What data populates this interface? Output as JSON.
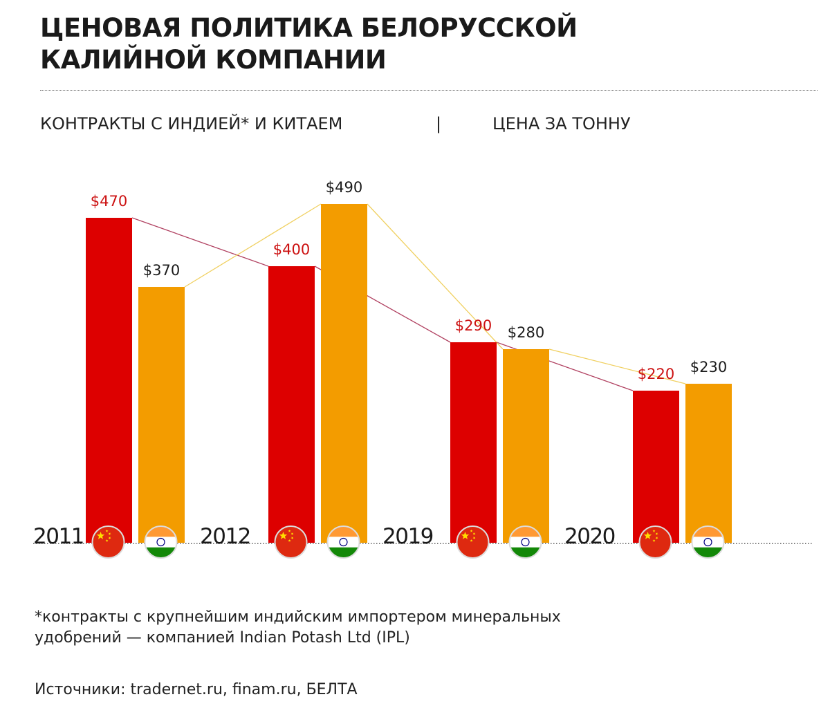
{
  "header": {
    "title_line1": "ЦЕНОВАЯ ПОЛИТИКА БЕЛОРУССКОЙ",
    "title_line2": "КАЛИЙНОЙ КОМПАНИИ",
    "subtitle_left": "КОНТРАКТЫ С ИНДИЕЙ* И КИТАЕМ",
    "subtitle_sep": "|",
    "subtitle_right": "ЦЕНА ЗА ТОННУ"
  },
  "chart_data": {
    "type": "bar",
    "categories": [
      "2011",
      "2012",
      "2019",
      "2020"
    ],
    "series": [
      {
        "key": "china",
        "flag_icon": "china-flag-icon",
        "color": "#dd0000",
        "label_color": "#cc1111",
        "values": [
          470,
          400,
          290,
          220
        ],
        "labels": [
          "$470",
          "$400",
          "$290",
          "$220"
        ]
      },
      {
        "key": "india",
        "flag_icon": "india-flag-icon",
        "color": "#f39c00",
        "label_color": "#1a1a1a",
        "values": [
          370,
          490,
          280,
          230
        ],
        "labels": [
          "$370",
          "$490",
          "$280",
          "$230"
        ]
      }
    ],
    "connector_colors": {
      "china": "#b04060",
      "india": "#f0d060"
    },
    "ylim": [
      0,
      490
    ],
    "xlabel": "",
    "ylabel": "",
    "grid": false,
    "legend": "none"
  },
  "footer": {
    "note_line1": "*контракты с крупнейшим индийским импортером минеральных",
    "note_line2": "удобрений —  компанией Indian Potash Ltd (IPL)",
    "sources": "Источники: tradernet.ru, finam.ru, БЕЛТА"
  }
}
